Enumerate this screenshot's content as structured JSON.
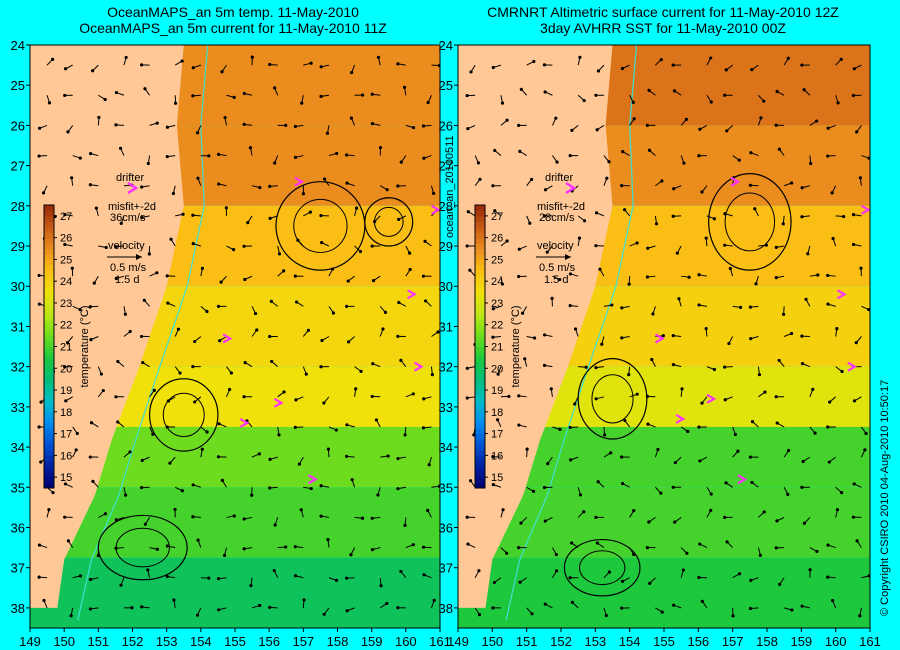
{
  "titles": {
    "left_line1": "OceanMAPS_an 5m temp. 11-May-2010",
    "left_line2": "OceanMAPS_an 5m current for 11-May-2010 11Z",
    "right_line1": "CMRNRT Altimetric surface current for 11-May-2010 12Z",
    "right_line2": "3day AVHRR SST for 11-May-2010 00Z"
  },
  "side_labels": {
    "middle": "ocean_an_20100511",
    "right": "© Copyright CSIRO 2010    04-Aug-2010 10:50:17"
  },
  "legend_left": {
    "drifter": "drifter",
    "misfit": "misfit+-2d",
    "misfit_speed": "36cm/s",
    "velocity": "velocity",
    "vel_scale": "0.5 m/s",
    "vel_days": "1.5 d"
  },
  "legend_right": {
    "drifter": "drifter",
    "misfit": "misfit+-2d",
    "misfit_speed": "28cm/s",
    "velocity": "velocity",
    "vel_scale": "0.5 m/s",
    "vel_days": "1.5 d"
  },
  "colorbar": {
    "label": "temperature (°C)",
    "ticks": [
      27,
      26,
      25,
      24,
      23,
      22,
      21,
      20,
      19,
      18,
      17,
      16,
      15
    ],
    "range": [
      14.5,
      27.5
    ]
  },
  "chart_data": [
    {
      "type": "heatmap",
      "title": "OceanMAPS_an 5m temp. 11-May-2010 / OceanMAPS_an 5m current for 11-May-2010 11Z",
      "xlabel": "",
      "ylabel": "",
      "xlim": [
        149,
        161
      ],
      "ylim": [
        38.5,
        24
      ],
      "xticks": [
        149,
        150,
        151,
        152,
        153,
        154,
        155,
        156,
        157,
        158,
        159,
        160,
        161
      ],
      "yticks": [
        24,
        25,
        26,
        27,
        28,
        29,
        30,
        31,
        32,
        33,
        34,
        35,
        36,
        37,
        38
      ],
      "zlabel": "temperature (°C)",
      "zlim": [
        14.5,
        27.5
      ],
      "temp_field_by_lat": [
        {
          "lat": 25,
          "temp": 25.5
        },
        {
          "lat": 27,
          "temp": 25.5
        },
        {
          "lat": 29,
          "temp": 24.5
        },
        {
          "lat": 31,
          "temp": 23.8
        },
        {
          "lat": 33,
          "temp": 23.5
        },
        {
          "lat": 34,
          "temp": 21.5
        },
        {
          "lat": 36,
          "temp": 21
        },
        {
          "lat": 37.5,
          "temp": 20
        }
      ],
      "drifter_positions": [
        {
          "lon": 156.9,
          "lat": 27.4
        },
        {
          "lon": 154.8,
          "lat": 31.3
        },
        {
          "lon": 156.3,
          "lat": 32.9
        },
        {
          "lon": 155.3,
          "lat": 33.4
        },
        {
          "lon": 157.3,
          "lat": 34.8
        },
        {
          "lon": 160.4,
          "lat": 32.0
        },
        {
          "lon": 160.2,
          "lat": 30.2
        },
        {
          "lon": 160.9,
          "lat": 28.1
        }
      ]
    },
    {
      "type": "heatmap",
      "title": "CMRNRT Altimetric surface current for 11-May-2010 12Z / 3day AVHRR SST for 11-May-2010 00Z",
      "xlabel": "",
      "ylabel": "",
      "xlim": [
        149,
        161
      ],
      "ylim": [
        38.5,
        24
      ],
      "xticks": [
        149,
        150,
        151,
        152,
        153,
        154,
        155,
        156,
        157,
        158,
        159,
        160,
        161
      ],
      "yticks": [
        24,
        25,
        26,
        27,
        28,
        29,
        30,
        31,
        32,
        33,
        34,
        35,
        36,
        37,
        38
      ],
      "zlabel": "temperature (°C)",
      "zlim": [
        14.5,
        27.5
      ],
      "temp_field_by_lat": [
        {
          "lat": 25,
          "temp": 26
        },
        {
          "lat": 27,
          "temp": 25.5
        },
        {
          "lat": 29,
          "temp": 24.5
        },
        {
          "lat": 31,
          "temp": 24
        },
        {
          "lat": 33,
          "temp": 23.2
        },
        {
          "lat": 34,
          "temp": 21
        },
        {
          "lat": 36,
          "temp": 21
        },
        {
          "lat": 37.5,
          "temp": 20.5
        }
      ],
      "drifter_positions": [
        {
          "lon": 157.1,
          "lat": 27.4
        },
        {
          "lon": 154.9,
          "lat": 31.3
        },
        {
          "lon": 156.4,
          "lat": 32.8
        },
        {
          "lon": 155.5,
          "lat": 33.3
        },
        {
          "lon": 157.3,
          "lat": 34.8
        },
        {
          "lon": 160.5,
          "lat": 32.0
        },
        {
          "lon": 160.2,
          "lat": 30.2
        },
        {
          "lon": 160.9,
          "lat": 28.1
        }
      ]
    }
  ],
  "colors": {
    "background": "#00ffff",
    "land": "#ffc896",
    "drifter": "#ff33ff",
    "contour": "#40e0d0"
  }
}
